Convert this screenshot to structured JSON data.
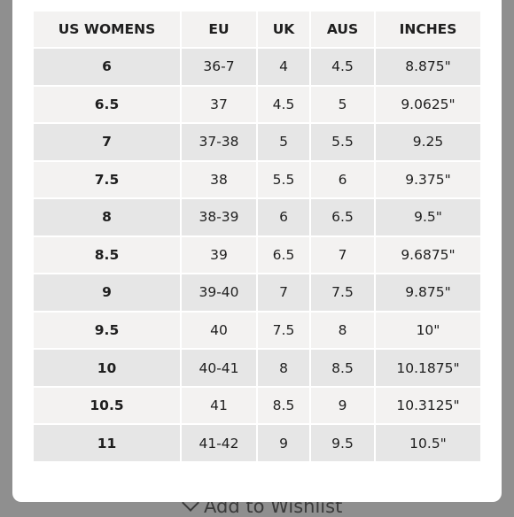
{
  "size_chart": {
    "headers": [
      "US WOMENS",
      "EU",
      "UK",
      "AUS",
      "INCHES"
    ],
    "rows": [
      [
        "6",
        "36-7",
        "4",
        "4.5",
        "8.875\""
      ],
      [
        "6.5",
        "37",
        "4.5",
        "5",
        "9.0625\""
      ],
      [
        "7",
        "37-38",
        "5",
        "5.5",
        "9.25"
      ],
      [
        "7.5",
        "38",
        "5.5",
        "6",
        "9.375\""
      ],
      [
        "8",
        "38-39",
        "6",
        "6.5",
        "9.5\""
      ],
      [
        "8.5",
        "39",
        "6.5",
        "7",
        "9.6875\""
      ],
      [
        "9",
        "39-40",
        "7",
        "7.5",
        "9.875\""
      ],
      [
        "9.5",
        "40",
        "7.5",
        "8",
        "10\""
      ],
      [
        "10",
        "40-41",
        "8",
        "8.5",
        "10.1875\""
      ],
      [
        "10.5",
        "41",
        "8.5",
        "9",
        "10.3125\""
      ],
      [
        "11",
        "41-42",
        "9",
        "9.5",
        "10.5\""
      ]
    ]
  },
  "background": {
    "wishlist_label": "Add to Wishlist",
    "wishlist_icon": "chevron-down-icon"
  },
  "colors": {
    "overlay": "#8f8f8f",
    "row_light": "#f3f2f1",
    "row_dark": "#e6e6e6"
  }
}
